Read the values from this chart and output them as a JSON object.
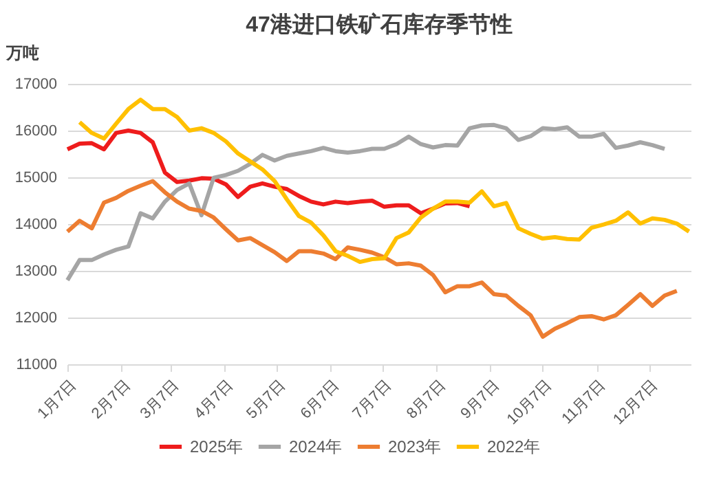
{
  "chart_data": {
    "type": "line",
    "title": "47港进口铁矿石库存季节性",
    "ylabel": "万吨",
    "x": [
      "--01-07",
      "--01-14",
      "--01-21",
      "--01-28",
      "--02-04",
      "--02-11",
      "--02-18",
      "--02-25",
      "--03-04",
      "--03-11",
      "--03-18",
      "--03-25",
      "--04-01",
      "--04-08",
      "--04-15",
      "--04-22",
      "--04-29",
      "--05-06",
      "--05-13",
      "--05-20",
      "--05-27",
      "--06-03",
      "--06-10",
      "--06-17",
      "--06-24",
      "--07-01",
      "--07-08",
      "--07-15",
      "--07-22",
      "--07-29",
      "--08-05",
      "--08-12",
      "--08-19",
      "--08-26",
      "--09-02",
      "--09-09",
      "--09-16",
      "--09-23",
      "--09-30",
      "--10-07",
      "--10-14",
      "--10-21",
      "--10-28",
      "--11-04",
      "--11-11",
      "--11-18",
      "--11-25",
      "--12-02",
      "--12-09",
      "--12-16",
      "--12-23",
      "--12-30"
    ],
    "xlim": [
      "--01-07",
      "--12-31"
    ],
    "xticks": [
      {
        "value": "--01-07",
        "label": "1月7日"
      },
      {
        "value": "--02-07",
        "label": "2月7日"
      },
      {
        "value": "--03-07",
        "label": "3月7日"
      },
      {
        "value": "--04-07",
        "label": "4月7日"
      },
      {
        "value": "--05-07",
        "label": "5月7日"
      },
      {
        "value": "--06-07",
        "label": "6月7日"
      },
      {
        "value": "--07-07",
        "label": "7月7日"
      },
      {
        "value": "--08-07",
        "label": "8月7日"
      },
      {
        "value": "--09-07",
        "label": "9月7日"
      },
      {
        "value": "--10-07",
        "label": "10月7日"
      },
      {
        "value": "--11-07",
        "label": "11月7日"
      },
      {
        "value": "--12-07",
        "label": "12月7日"
      }
    ],
    "ylim": [
      11000,
      17000
    ],
    "yticks": [
      11000,
      12000,
      13000,
      14000,
      15000,
      16000,
      17000
    ],
    "grid": "y",
    "legend": "bottom",
    "series": [
      {
        "name": "2025年",
        "color": "#ee1c1c",
        "values": [
          15600,
          15720,
          15730,
          15600,
          15950,
          16000,
          15950,
          15750,
          15100,
          14900,
          14930,
          14980,
          14970,
          14850,
          14580,
          14800,
          14870,
          14800,
          14750,
          14600,
          14480,
          14420,
          14480,
          14450,
          14480,
          14500,
          14370,
          14400,
          14400,
          14230,
          14330,
          14440,
          14450,
          14380,
          null,
          null,
          null,
          null,
          null,
          null,
          null,
          null,
          null,
          null,
          null,
          null,
          null,
          null,
          null,
          null,
          null,
          null
        ]
      },
      {
        "name": "2024年",
        "color": "#a5a5a5",
        "values": [
          12800,
          13230,
          13230,
          13350,
          13450,
          13520,
          14230,
          14120,
          14480,
          14730,
          14870,
          14190,
          14990,
          15050,
          15140,
          15290,
          15480,
          15360,
          15460,
          15510,
          15560,
          15630,
          15560,
          15530,
          15560,
          15610,
          15610,
          15710,
          15870,
          15710,
          15640,
          15690,
          15680,
          16050,
          16110,
          16120,
          16050,
          15800,
          15880,
          16050,
          16030,
          16070,
          15870,
          15870,
          15930,
          15630,
          15680,
          15750,
          15690,
          15610,
          null,
          null
        ]
      },
      {
        "name": "2023年",
        "color": "#ed7d31",
        "values": [
          13840,
          14070,
          13910,
          14460,
          14560,
          14710,
          14820,
          14920,
          14680,
          14480,
          14330,
          14280,
          14140,
          13890,
          13650,
          13700,
          13550,
          13400,
          13210,
          13420,
          13420,
          13370,
          13250,
          13500,
          13450,
          13390,
          13290,
          13140,
          13160,
          13110,
          12910,
          12540,
          12670,
          12670,
          12750,
          12500,
          12470,
          12250,
          12050,
          11590,
          11760,
          11880,
          12010,
          12030,
          11960,
          12050,
          12270,
          12500,
          12250,
          12470,
          12570,
          null
        ]
      },
      {
        "name": "2022年",
        "color": "#ffc000",
        "values": [
          null,
          16180,
          15950,
          15830,
          16150,
          16460,
          16660,
          16460,
          16460,
          16290,
          16000,
          16050,
          15950,
          15770,
          15510,
          15340,
          15170,
          14920,
          14530,
          14170,
          14030,
          13760,
          13420,
          13320,
          13190,
          13250,
          13270,
          13700,
          13820,
          14140,
          14330,
          14480,
          14480,
          14460,
          14700,
          14380,
          14450,
          13910,
          13790,
          13690,
          13720,
          13680,
          13670,
          13920,
          13990,
          14070,
          14250,
          14010,
          14120,
          14090,
          14010,
          13840
        ]
      }
    ]
  }
}
